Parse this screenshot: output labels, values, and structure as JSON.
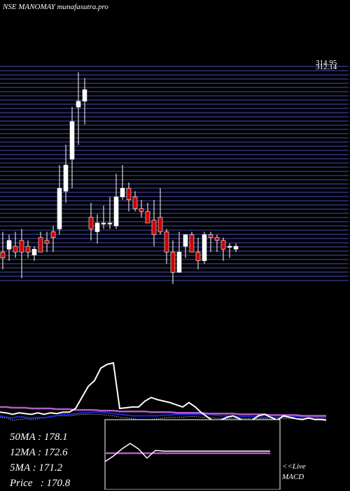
{
  "header": {
    "title": "NSE MANOMAY munafasutra.pro"
  },
  "stats": {
    "ma50": "50MA : 178.1",
    "ma12": "12MA : 172.6",
    "ma5": "5MA : 171.2",
    "price": "Price   : 170.8"
  },
  "panel": {
    "live": "<<Live",
    "macd": "MACD"
  },
  "colors": {
    "up": "#ffffff",
    "down": "#cc0000",
    "grid": "#3a3f8f",
    "bg": "#000000",
    "ma_purple": "#b35cc9",
    "ma_blue": "#1e22d8"
  },
  "chart_data": {
    "type": "candlestick",
    "ylim": [
      157,
      232
    ],
    "price_labels": [
      "314.95",
      "312.14"
    ],
    "candles": [
      {
        "o": 168,
        "h": 175,
        "l": 162,
        "c": 166
      },
      {
        "o": 169,
        "h": 174,
        "l": 165,
        "c": 172
      },
      {
        "o": 170,
        "h": 175,
        "l": 166,
        "c": 168
      },
      {
        "o": 172,
        "h": 176,
        "l": 159,
        "c": 168
      },
      {
        "o": 170,
        "h": 172,
        "l": 166,
        "c": 168
      },
      {
        "o": 167,
        "h": 170,
        "l": 165,
        "c": 169
      },
      {
        "o": 173,
        "h": 175,
        "l": 168,
        "c": 168
      },
      {
        "o": 172,
        "h": 175,
        "l": 168,
        "c": 171
      },
      {
        "o": 175,
        "h": 177,
        "l": 168,
        "c": 173
      },
      {
        "o": 176,
        "h": 198,
        "l": 174,
        "c": 190
      },
      {
        "o": 189,
        "h": 205,
        "l": 185,
        "c": 198
      },
      {
        "o": 200,
        "h": 218,
        "l": 190,
        "c": 213
      },
      {
        "o": 218,
        "h": 230,
        "l": 205,
        "c": 220
      },
      {
        "o": 220,
        "h": 228,
        "l": 212,
        "c": 224
      },
      {
        "o": 180,
        "h": 185,
        "l": 172,
        "c": 176
      },
      {
        "o": 175,
        "h": 181,
        "l": 171,
        "c": 178
      },
      {
        "o": 178,
        "h": 184,
        "l": 176,
        "c": 178
      },
      {
        "o": 178,
        "h": 187,
        "l": 176,
        "c": 178
      },
      {
        "o": 177,
        "h": 195,
        "l": 176,
        "c": 187
      },
      {
        "o": 187,
        "h": 198,
        "l": 186,
        "c": 190
      },
      {
        "o": 190,
        "h": 192,
        "l": 182,
        "c": 186
      },
      {
        "o": 187,
        "h": 189,
        "l": 182,
        "c": 183
      },
      {
        "o": 183,
        "h": 186,
        "l": 180,
        "c": 182
      },
      {
        "o": 182,
        "h": 185,
        "l": 178,
        "c": 178
      },
      {
        "o": 179,
        "h": 186,
        "l": 170,
        "c": 174
      },
      {
        "o": 180,
        "h": 190,
        "l": 174,
        "c": 175
      },
      {
        "o": 175,
        "h": 176,
        "l": 164,
        "c": 168
      },
      {
        "o": 168,
        "h": 172,
        "l": 157,
        "c": 161
      },
      {
        "o": 161,
        "h": 175,
        "l": 161,
        "c": 168
      },
      {
        "o": 170,
        "h": 174,
        "l": 166,
        "c": 174
      },
      {
        "o": 174,
        "h": 175,
        "l": 168,
        "c": 168
      },
      {
        "o": 168,
        "h": 173,
        "l": 162,
        "c": 165
      },
      {
        "o": 165,
        "h": 175,
        "l": 164,
        "c": 174
      },
      {
        "o": 174,
        "h": 175,
        "l": 168,
        "c": 173
      },
      {
        "o": 173,
        "h": 174,
        "l": 168,
        "c": 172
      },
      {
        "o": 172,
        "h": 173,
        "l": 165,
        "c": 169
      },
      {
        "o": 170,
        "h": 171,
        "l": 166,
        "c": 170
      },
      {
        "o": 169,
        "h": 171,
        "l": 168,
        "c": 170
      }
    ],
    "indicator_ylim": [
      0,
      100
    ],
    "indicator_x": [
      0,
      9,
      18,
      27,
      36,
      45,
      54,
      63,
      72,
      81,
      90,
      99,
      108,
      117,
      126,
      135,
      144,
      153,
      162,
      171,
      180,
      189,
      198,
      207,
      216,
      225,
      234,
      243,
      252,
      261,
      270,
      279,
      288,
      297,
      306,
      315,
      324,
      333,
      342,
      351,
      360,
      369,
      378,
      387,
      396,
      405,
      414,
      423,
      432,
      441,
      450,
      459,
      466
    ],
    "white_line": [
      15,
      14,
      12,
      14,
      13,
      12,
      14,
      12,
      14,
      13,
      15,
      15,
      20,
      35,
      50,
      58,
      75,
      80,
      82,
      20,
      21,
      22,
      22,
      30,
      35,
      32,
      30,
      28,
      25,
      22,
      28,
      22,
      14,
      8,
      2,
      4,
      8,
      10,
      6,
      2,
      4,
      10,
      12,
      8,
      4,
      10,
      8,
      6,
      5,
      7,
      5,
      5,
      4
    ],
    "purple_line": [
      22,
      22,
      21,
      21,
      21,
      20,
      20,
      20,
      20,
      19,
      19,
      19,
      18,
      18,
      18,
      18,
      17,
      17,
      17,
      16,
      16,
      16,
      16,
      16,
      15,
      15,
      15,
      15,
      14,
      14,
      14,
      14,
      14,
      13,
      13,
      13,
      13,
      13,
      12,
      12,
      12,
      12,
      12,
      11,
      11,
      11,
      11,
      11,
      10,
      10,
      10,
      10,
      10
    ],
    "blue_line": [
      10,
      8,
      7,
      9,
      8,
      7,
      8,
      7,
      9,
      10,
      12,
      12,
      13,
      14,
      14,
      15,
      15,
      14,
      13,
      12,
      11,
      10,
      10,
      10,
      10,
      10,
      11,
      11,
      12,
      12,
      12,
      12,
      12,
      12,
      11,
      10,
      10,
      9,
      9,
      9,
      9,
      8,
      8,
      8,
      8,
      8,
      8,
      9,
      8,
      8,
      8,
      8,
      8
    ],
    "dotted_line": [
      8,
      7,
      4,
      5,
      6,
      5,
      6,
      8,
      8,
      10,
      10,
      10,
      11,
      12,
      12,
      12,
      12,
      11,
      10,
      8,
      7,
      6,
      5,
      5,
      5,
      6,
      7,
      8,
      8,
      8,
      9,
      9,
      8,
      8,
      7,
      6,
      6,
      7,
      6,
      6,
      6,
      6,
      6,
      6,
      6,
      6,
      6,
      6,
      6,
      6,
      6,
      6,
      6
    ],
    "macd_ylim": [
      0,
      100
    ],
    "macd_x": [
      150,
      162,
      174,
      186,
      198,
      210,
      222,
      234,
      246,
      258,
      270,
      282,
      294,
      306,
      318,
      330,
      342,
      354,
      366,
      378,
      386
    ],
    "macd_line": [
      40,
      48,
      58,
      66,
      58,
      45,
      56,
      55,
      55,
      55,
      55,
      55,
      55,
      55,
      55,
      55,
      55,
      55,
      55,
      55,
      55
    ],
    "signal_line": [
      52,
      52,
      52,
      52,
      52,
      52,
      52,
      52,
      52,
      52,
      52,
      52,
      52,
      52,
      52,
      52,
      52,
      52,
      52,
      52,
      52
    ]
  }
}
